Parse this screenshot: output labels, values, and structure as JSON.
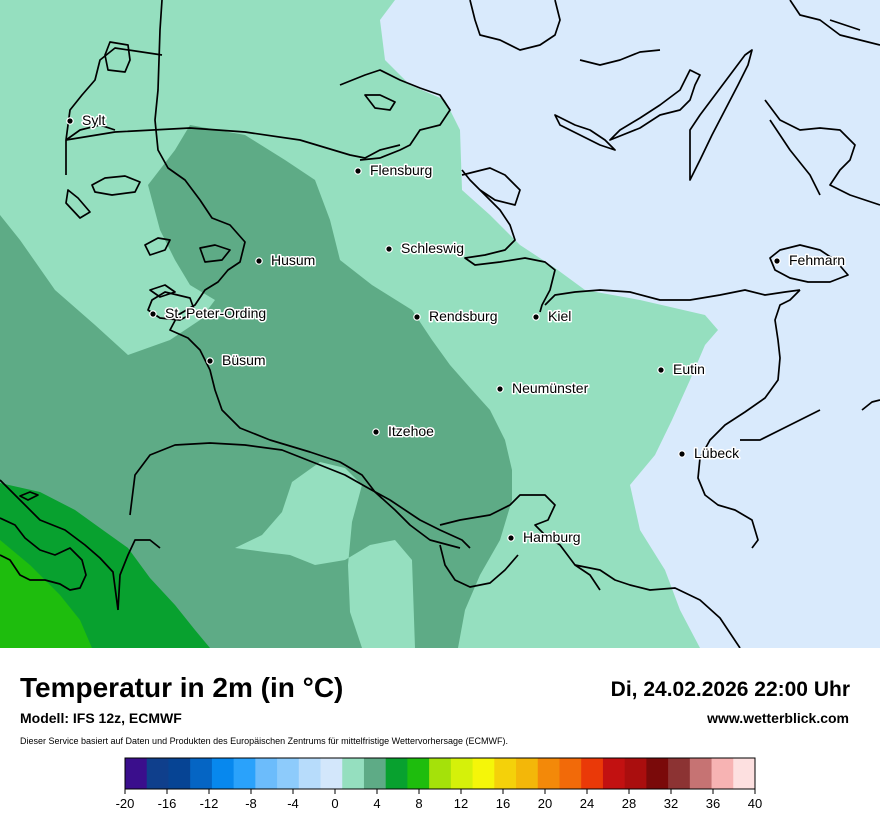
{
  "title": "Temperatur in 2m (in °C)",
  "model": "Modell: IFS 12z, ECMWF",
  "datetime": "Di, 24.02.2026 22:00 Uhr",
  "website": "www.wetterblick.com",
  "disclaimer": "Dieser Service basiert auf Daten und Produkten des Europäischen Zentrums für mittelfristige Wettervorhersage (ECMWF).",
  "cities": [
    {
      "name": "Sylt",
      "label": "Sylt"
    },
    {
      "name": "Flensburg",
      "label": "Flensburg"
    },
    {
      "name": "Schleswig",
      "label": "Schleswig"
    },
    {
      "name": "Husum",
      "label": "Husum"
    },
    {
      "name": "Fehmarn",
      "label": "Fehmarn"
    },
    {
      "name": "St. Peter-Ording",
      "label": "St. Peter-Ording"
    },
    {
      "name": "Rendsburg",
      "label": "Rendsburg"
    },
    {
      "name": "Kiel",
      "label": "Kiel"
    },
    {
      "name": "Büsum",
      "label": "Büsum"
    },
    {
      "name": "Eutin",
      "label": "Eutin"
    },
    {
      "name": "Neumünster",
      "label": "Neumünster"
    },
    {
      "name": "Itzehoe",
      "label": "Itzehoe"
    },
    {
      "name": "Lübeck",
      "label": "Lübeck"
    },
    {
      "name": "Hamburg",
      "label": "Hamburg"
    }
  ],
  "legend": {
    "ticks": [
      "-20",
      "-16",
      "-12",
      "-8",
      "-4",
      "0",
      "4",
      "8",
      "12",
      "16",
      "20",
      "24",
      "28",
      "32",
      "36",
      "40"
    ],
    "colors": [
      "#3a0e8c",
      "#0f3f8c",
      "#064494",
      "#0565c4",
      "#0788ee",
      "#2aa2fb",
      "#6cbcfb",
      "#8dcbfb",
      "#b7dcfb",
      "#d3e7fb",
      "#95dfbf",
      "#5eab86",
      "#08a12f",
      "#1ebd0d",
      "#a5e10a",
      "#d5f10a",
      "#f5f609",
      "#f4d10a",
      "#f3b709",
      "#f38909",
      "#f26a09",
      "#ea3908",
      "#c21111",
      "#aa0e0e",
      "#7a0a0a",
      "#8c3333",
      "#c67373",
      "#f7b3b3",
      "#fde0e0"
    ]
  },
  "colors": {
    "sea": "#d9eafc",
    "band_2_4": "#95dfbf",
    "band_4_6": "#5eab86",
    "band_6_8": "#08a12f",
    "band_8_10": "#1ebd0d"
  }
}
